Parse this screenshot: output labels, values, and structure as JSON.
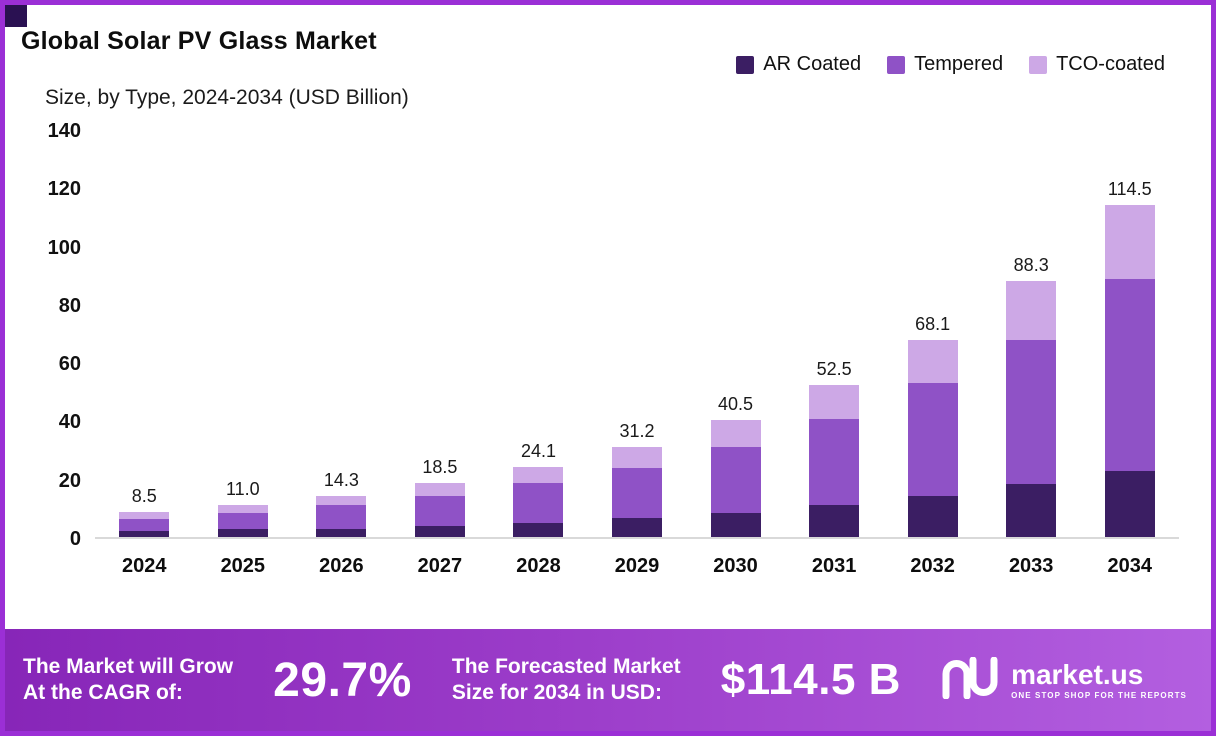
{
  "header": {
    "title": "Global Solar PV Glass Market",
    "subtitle": "Size, by Type, 2024-2034 (USD Billion)"
  },
  "legend": [
    {
      "label": "AR Coated",
      "color": "#3b1e63"
    },
    {
      "label": "Tempered",
      "color": "#8f52c6"
    },
    {
      "label": "TCO-coated",
      "color": "#cda8e6"
    }
  ],
  "chart_data": {
    "type": "bar",
    "stacked": true,
    "title": "Global Solar PV Glass Market Size, by Type, 2024-2034 (USD Billion)",
    "categories": [
      "2024",
      "2025",
      "2026",
      "2027",
      "2028",
      "2029",
      "2030",
      "2031",
      "2032",
      "2033",
      "2034"
    ],
    "series": [
      {
        "name": "AR Coated",
        "color": "#3b1e63",
        "values": [
          2.0,
          2.6,
          2.9,
          3.7,
          4.8,
          6.5,
          8.2,
          11.0,
          14.0,
          18.2,
          22.6
        ]
      },
      {
        "name": "Tempered",
        "color": "#8f52c6",
        "values": [
          4.2,
          5.6,
          8.1,
          10.6,
          13.8,
          17.2,
          23.0,
          29.8,
          39.1,
          49.7,
          66.2
        ]
      },
      {
        "name": "TCO-coated",
        "color": "#cda8e6",
        "values": [
          2.3,
          2.8,
          3.3,
          4.2,
          5.5,
          7.5,
          9.3,
          11.7,
          15.0,
          20.4,
          25.7
        ]
      }
    ],
    "totals": [
      8.5,
      11.0,
      14.3,
      18.5,
      24.1,
      31.2,
      40.5,
      52.5,
      68.1,
      88.3,
      114.5
    ],
    "total_labels": [
      "8.5",
      "11.0",
      "14.3",
      "18.5",
      "24.1",
      "31.2",
      "40.5",
      "52.5",
      "68.1",
      "88.3",
      "114.5"
    ],
    "xlabel": "",
    "ylabel": "",
    "ylim": [
      0,
      140
    ],
    "yticks": [
      0,
      20,
      40,
      60,
      80,
      100,
      120,
      140
    ],
    "grid": false,
    "legend_position": "top-right"
  },
  "banner": {
    "cagr_line1": "The Market will Grow",
    "cagr_line2": "At the CAGR of:",
    "cagr_value": "29.7%",
    "forecast_line1": "The Forecasted Market",
    "forecast_line2": "Size for 2034 in USD:",
    "forecast_value": "$114.5 B",
    "brand": "market.us",
    "brand_tagline": "One Stop Shop For The Reports"
  },
  "colors": {
    "frame_border": "#9b2fd6",
    "banner_gradient_start": "#8726b8",
    "banner_gradient_end": "#b35fe0",
    "axis_line": "#d9d9d9"
  }
}
